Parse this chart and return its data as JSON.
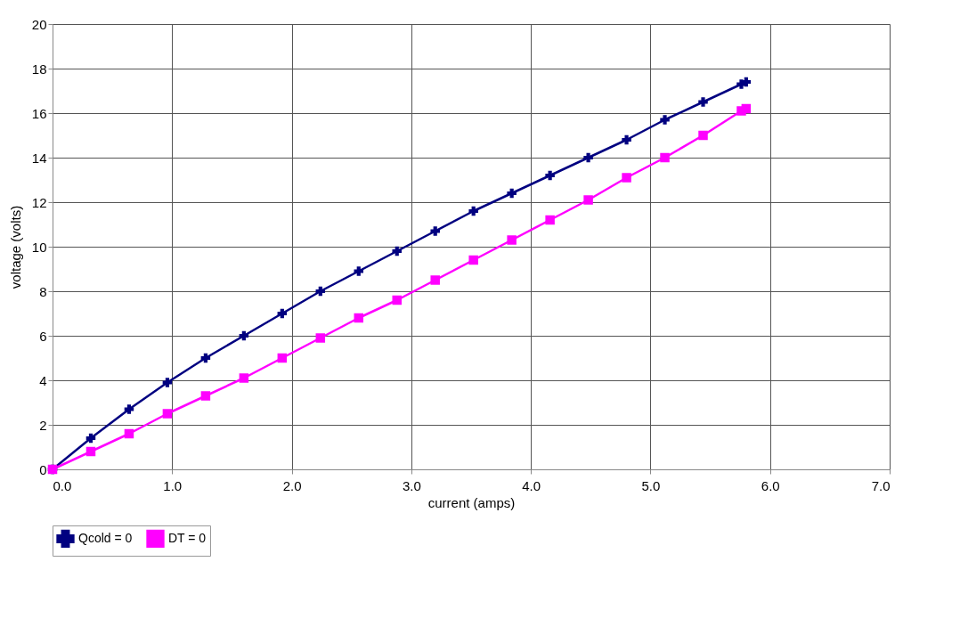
{
  "chart_data": {
    "type": "line",
    "xlabel": "current (amps)",
    "ylabel": "voltage (volts)",
    "xlim": [
      0,
      7
    ],
    "ylim": [
      0,
      20
    ],
    "xticks": [
      {
        "value": 0,
        "label": "0.0"
      },
      {
        "value": 1,
        "label": "1.0"
      },
      {
        "value": 2,
        "label": "2.0"
      },
      {
        "value": 3,
        "label": "3.0"
      },
      {
        "value": 4,
        "label": "4.0"
      },
      {
        "value": 5,
        "label": "5.0"
      },
      {
        "value": 6,
        "label": "6.0"
      },
      {
        "value": 7,
        "label": "7.0"
      }
    ],
    "yticks": [
      0,
      2,
      4,
      6,
      8,
      10,
      12,
      14,
      16,
      18,
      20
    ],
    "grid": true,
    "legend": "bottom",
    "x": [
      0,
      0.32,
      0.64,
      0.96,
      1.28,
      1.6,
      1.92,
      2.24,
      2.56,
      2.88,
      3.2,
      3.52,
      3.84,
      4.16,
      4.48,
      4.8,
      5.12,
      5.44,
      5.76,
      5.8
    ],
    "series": [
      {
        "name": "Qcold = 0",
        "color": "#000080",
        "marker": "cross",
        "values": [
          0,
          1.4,
          2.7,
          3.9,
          5.0,
          6.0,
          7.0,
          8.0,
          8.9,
          9.8,
          10.7,
          11.6,
          12.4,
          13.2,
          14.0,
          14.8,
          15.7,
          16.5,
          17.3,
          17.4
        ]
      },
      {
        "name": "DT = 0",
        "color": "#ff00ff",
        "marker": "square",
        "values": [
          0,
          0.8,
          1.6,
          2.5,
          3.3,
          4.1,
          5.0,
          5.9,
          6.8,
          7.6,
          8.5,
          9.4,
          10.3,
          11.2,
          12.1,
          13.1,
          14.0,
          15.0,
          16.1,
          16.2
        ]
      }
    ]
  }
}
